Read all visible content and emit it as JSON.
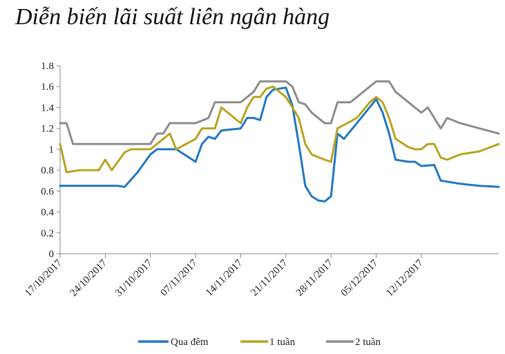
{
  "title": "Diễn biến lãi suất liên ngân hàng",
  "chart_data": {
    "type": "line",
    "title": "Diễn biến lãi suất liên ngân hàng",
    "xlabel": "",
    "ylabel": "",
    "ylim": [
      0,
      1.8
    ],
    "yticks": [
      "0",
      "0.2",
      "0.4",
      "0.6",
      "0.8",
      "1",
      "1.2",
      "1.4",
      "1.6",
      "1.8"
    ],
    "ytick_values": [
      0,
      0.2,
      0.4,
      0.6,
      0.8,
      1.0,
      1.2,
      1.4,
      1.6,
      1.8
    ],
    "xlim": [
      "2017-10-17",
      "2017-12-24"
    ],
    "xticks": [
      "17/10/2017",
      "24/10/2017",
      "31/10/2017",
      "07/11/2017",
      "14/11/2017",
      "21/11/2017",
      "28/11/2017",
      "05/12/2017",
      "12/12/2017"
    ],
    "xtick_dates": [
      "2017-10-17",
      "2017-10-24",
      "2017-10-31",
      "2017-11-07",
      "2017-11-14",
      "2017-11-21",
      "2017-11-28",
      "2017-12-05",
      "2017-12-12"
    ],
    "grid": false,
    "legend": "bottom",
    "series": [
      {
        "name": "Qua đêm",
        "color": "#1f77c4",
        "points": [
          [
            "2017-10-17",
            0.65
          ],
          [
            "2017-10-20",
            0.65
          ],
          [
            "2017-10-23",
            0.65
          ],
          [
            "2017-10-26",
            0.65
          ],
          [
            "2017-10-27",
            0.64
          ],
          [
            "2017-10-29",
            0.78
          ],
          [
            "2017-10-31",
            0.95
          ],
          [
            "2017-11-01",
            1.0
          ],
          [
            "2017-11-04",
            1.0
          ],
          [
            "2017-11-07",
            0.88
          ],
          [
            "2017-11-08",
            1.05
          ],
          [
            "2017-11-09",
            1.12
          ],
          [
            "2017-11-10",
            1.1
          ],
          [
            "2017-11-11",
            1.18
          ],
          [
            "2017-11-14",
            1.2
          ],
          [
            "2017-11-15",
            1.3
          ],
          [
            "2017-11-16",
            1.3
          ],
          [
            "2017-11-17",
            1.28
          ],
          [
            "2017-11-18",
            1.5
          ],
          [
            "2017-11-19",
            1.57
          ],
          [
            "2017-11-20",
            1.58
          ],
          [
            "2017-11-21",
            1.59
          ],
          [
            "2017-11-22",
            1.42
          ],
          [
            "2017-11-23",
            1.05
          ],
          [
            "2017-11-24",
            0.65
          ],
          [
            "2017-11-25",
            0.55
          ],
          [
            "2017-11-26",
            0.51
          ],
          [
            "2017-11-27",
            0.5
          ],
          [
            "2017-11-28",
            0.55
          ],
          [
            "2017-11-29",
            1.15
          ],
          [
            "2017-11-30",
            1.1
          ],
          [
            "2017-12-02",
            1.25
          ],
          [
            "2017-12-05",
            1.48
          ],
          [
            "2017-12-06",
            1.35
          ],
          [
            "2017-12-07",
            1.15
          ],
          [
            "2017-12-08",
            0.9
          ],
          [
            "2017-12-10",
            0.88
          ],
          [
            "2017-12-11",
            0.88
          ],
          [
            "2017-12-12",
            0.84
          ],
          [
            "2017-12-14",
            0.85
          ],
          [
            "2017-12-15",
            0.7
          ],
          [
            "2017-12-18",
            0.67
          ],
          [
            "2017-12-21",
            0.65
          ],
          [
            "2017-12-24",
            0.64
          ]
        ]
      },
      {
        "name": "1 tuần",
        "color": "#b9a21e",
        "points": [
          [
            "2017-10-17",
            1.05
          ],
          [
            "2017-10-18",
            0.78
          ],
          [
            "2017-10-20",
            0.8
          ],
          [
            "2017-10-23",
            0.8
          ],
          [
            "2017-10-24",
            0.9
          ],
          [
            "2017-10-25",
            0.8
          ],
          [
            "2017-10-27",
            0.97
          ],
          [
            "2017-10-28",
            1.0
          ],
          [
            "2017-10-30",
            1.0
          ],
          [
            "2017-10-31",
            1.0
          ],
          [
            "2017-11-02",
            1.1
          ],
          [
            "2017-11-03",
            1.15
          ],
          [
            "2017-11-04",
            1.0
          ],
          [
            "2017-11-07",
            1.1
          ],
          [
            "2017-11-08",
            1.2
          ],
          [
            "2017-11-09",
            1.2
          ],
          [
            "2017-11-10",
            1.2
          ],
          [
            "2017-11-11",
            1.4
          ],
          [
            "2017-11-13",
            1.3
          ],
          [
            "2017-11-14",
            1.25
          ],
          [
            "2017-11-15",
            1.4
          ],
          [
            "2017-11-16",
            1.5
          ],
          [
            "2017-11-17",
            1.5
          ],
          [
            "2017-11-18",
            1.58
          ],
          [
            "2017-11-19",
            1.6
          ],
          [
            "2017-11-20",
            1.55
          ],
          [
            "2017-11-21",
            1.5
          ],
          [
            "2017-11-22",
            1.4
          ],
          [
            "2017-11-23",
            1.3
          ],
          [
            "2017-11-24",
            1.05
          ],
          [
            "2017-11-25",
            0.95
          ],
          [
            "2017-11-27",
            0.9
          ],
          [
            "2017-11-28",
            0.88
          ],
          [
            "2017-11-29",
            1.2
          ],
          [
            "2017-12-02",
            1.3
          ],
          [
            "2017-12-04",
            1.45
          ],
          [
            "2017-12-05",
            1.5
          ],
          [
            "2017-12-06",
            1.45
          ],
          [
            "2017-12-07",
            1.3
          ],
          [
            "2017-12-08",
            1.1
          ],
          [
            "2017-12-10",
            1.02
          ],
          [
            "2017-12-11",
            1.0
          ],
          [
            "2017-12-12",
            1.0
          ],
          [
            "2017-12-13",
            1.05
          ],
          [
            "2017-12-14",
            1.05
          ],
          [
            "2017-12-15",
            0.92
          ],
          [
            "2017-12-16",
            0.9
          ],
          [
            "2017-12-18",
            0.95
          ],
          [
            "2017-12-21",
            0.98
          ],
          [
            "2017-12-24",
            1.05
          ]
        ]
      },
      {
        "name": "2 tuần",
        "color": "#8c8c8c",
        "points": [
          [
            "2017-10-17",
            1.25
          ],
          [
            "2017-10-18",
            1.25
          ],
          [
            "2017-10-19",
            1.05
          ],
          [
            "2017-10-22",
            1.05
          ],
          [
            "2017-10-24",
            1.05
          ],
          [
            "2017-10-28",
            1.05
          ],
          [
            "2017-10-30",
            1.05
          ],
          [
            "2017-10-31",
            1.05
          ],
          [
            "2017-11-01",
            1.15
          ],
          [
            "2017-11-02",
            1.15
          ],
          [
            "2017-11-03",
            1.25
          ],
          [
            "2017-11-06",
            1.25
          ],
          [
            "2017-11-07",
            1.25
          ],
          [
            "2017-11-09",
            1.3
          ],
          [
            "2017-11-10",
            1.45
          ],
          [
            "2017-11-14",
            1.45
          ],
          [
            "2017-11-15",
            1.5
          ],
          [
            "2017-11-16",
            1.55
          ],
          [
            "2017-11-17",
            1.65
          ],
          [
            "2017-11-20",
            1.65
          ],
          [
            "2017-11-21",
            1.65
          ],
          [
            "2017-11-22",
            1.6
          ],
          [
            "2017-11-23",
            1.45
          ],
          [
            "2017-11-24",
            1.43
          ],
          [
            "2017-11-25",
            1.35
          ],
          [
            "2017-11-27",
            1.25
          ],
          [
            "2017-11-28",
            1.25
          ],
          [
            "2017-11-29",
            1.45
          ],
          [
            "2017-12-01",
            1.45
          ],
          [
            "2017-12-03",
            1.55
          ],
          [
            "2017-12-05",
            1.65
          ],
          [
            "2017-12-07",
            1.65
          ],
          [
            "2017-12-08",
            1.55
          ],
          [
            "2017-12-10",
            1.45
          ],
          [
            "2017-12-12",
            1.35
          ],
          [
            "2017-12-13",
            1.4
          ],
          [
            "2017-12-14",
            1.3
          ],
          [
            "2017-12-15",
            1.2
          ],
          [
            "2017-12-16",
            1.3
          ],
          [
            "2017-12-18",
            1.25
          ],
          [
            "2017-12-21",
            1.2
          ],
          [
            "2017-12-24",
            1.15
          ]
        ]
      }
    ]
  }
}
